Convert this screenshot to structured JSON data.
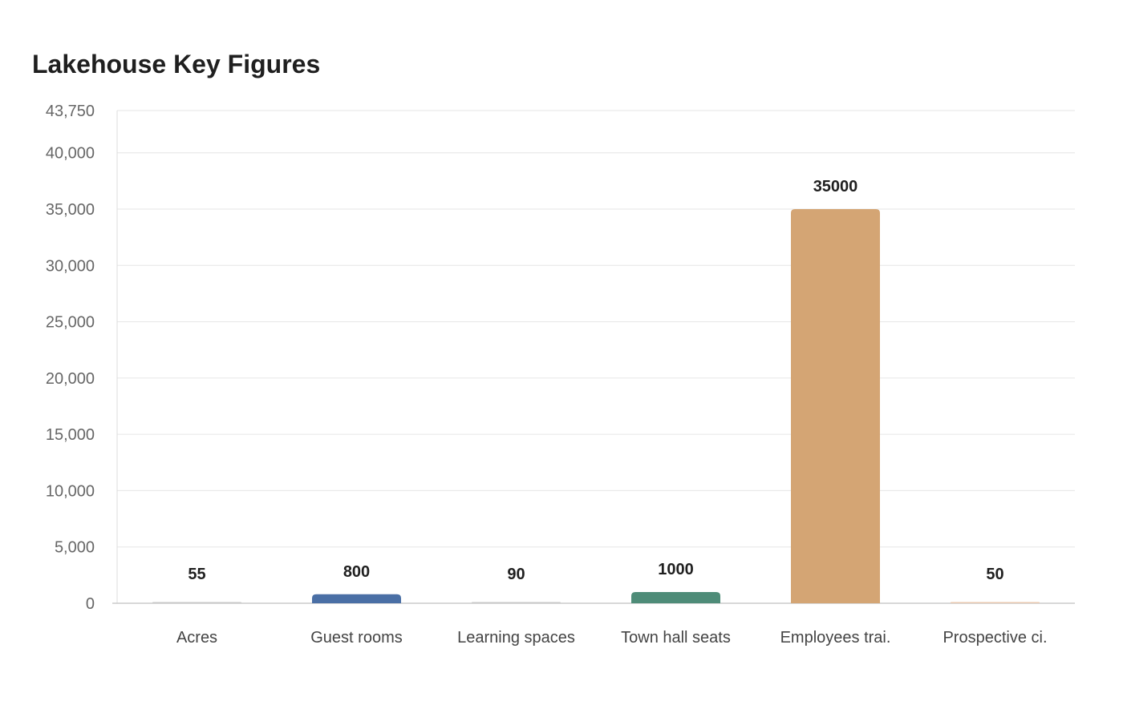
{
  "chart_data": {
    "type": "bar",
    "title": "Lakehouse Key Figures",
    "xlabel": "",
    "ylabel": "",
    "categories": [
      "Acres",
      "Guest rooms",
      "Learning spaces",
      "Town hall seats",
      "Employees trai.",
      "Prospective ci."
    ],
    "values": [
      55,
      800,
      90,
      1000,
      35000,
      50
    ],
    "colors": [
      "#c9c9c9",
      "#4a6fa5",
      "#c9c9c9",
      "#4e8c78",
      "#d4a574",
      "#e8c9b0"
    ],
    "ylim": [
      0,
      43750
    ],
    "yticks": [
      0,
      5000,
      10000,
      15000,
      20000,
      25000,
      30000,
      35000,
      40000,
      43750
    ],
    "ytick_labels": [
      "0",
      "5,000",
      "10,000",
      "15,000",
      "20,000",
      "25,000",
      "30,000",
      "35,000",
      "40,000",
      "43,750"
    ],
    "grid": true,
    "legend": "none"
  }
}
